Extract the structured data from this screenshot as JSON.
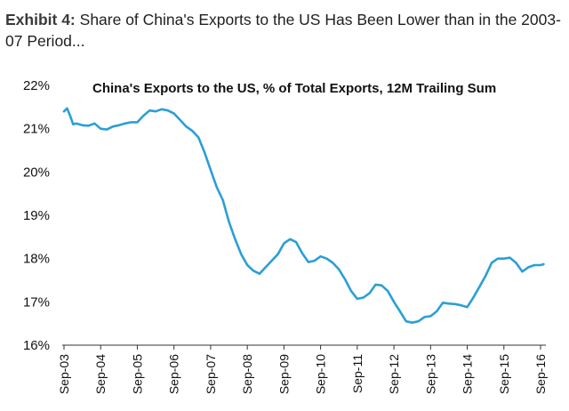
{
  "exhibit": {
    "label": "Exhibit 4:",
    "text": "Share of China's Exports to the US Has Been Lower than in the 2003-07 Period..."
  },
  "colors": {
    "line": "#2b9fd6",
    "axis": "#333333"
  },
  "chart_data": {
    "type": "line",
    "title": "China's Exports to the US, % of Total Exports, 12M Trailing Sum",
    "xlabel": "",
    "ylabel": "",
    "ylim": [
      16,
      22
    ],
    "yticks": [
      16,
      17,
      18,
      19,
      20,
      21,
      22
    ],
    "ytick_labels": [
      "16%",
      "17%",
      "18%",
      "19%",
      "20%",
      "21%",
      "22%"
    ],
    "xticks": [
      "2003-09",
      "2004-09",
      "2005-09",
      "2006-09",
      "2007-09",
      "2008-09",
      "2009-09",
      "2010-09",
      "2011-09",
      "2012-09",
      "2013-09",
      "2014-09",
      "2015-09",
      "2016-09"
    ],
    "xtick_labels": [
      "Sep-03",
      "Sep-04",
      "Sep-05",
      "Sep-06",
      "Sep-07",
      "Sep-08",
      "Sep-09",
      "Sep-10",
      "Sep-11",
      "Sep-12",
      "Sep-13",
      "Sep-14",
      "Sep-15",
      "Sep-16"
    ],
    "grid": false,
    "series": [
      {
        "x": [
          "2003-09",
          "2003-10",
          "2003-11",
          "2003-12",
          "2004-01",
          "2004-03",
          "2004-05",
          "2004-07",
          "2004-09",
          "2004-11",
          "2005-01",
          "2005-03",
          "2005-05",
          "2005-07",
          "2005-09",
          "2005-11",
          "2006-01",
          "2006-03",
          "2006-05",
          "2006-07",
          "2006-09",
          "2006-11",
          "2007-01",
          "2007-03",
          "2007-05",
          "2007-07",
          "2007-09",
          "2007-11",
          "2008-01",
          "2008-03",
          "2008-05",
          "2008-07",
          "2008-09",
          "2008-11",
          "2009-01",
          "2009-03",
          "2009-05",
          "2009-07",
          "2009-09",
          "2009-11",
          "2010-01",
          "2010-03",
          "2010-05",
          "2010-07",
          "2010-09",
          "2010-11",
          "2011-01",
          "2011-03",
          "2011-05",
          "2011-07",
          "2011-09",
          "2011-11",
          "2012-01",
          "2012-03",
          "2012-05",
          "2012-07",
          "2012-09",
          "2012-11",
          "2013-01",
          "2013-03",
          "2013-05",
          "2013-07",
          "2013-09",
          "2013-11",
          "2014-01",
          "2014-03",
          "2014-05",
          "2014-07",
          "2014-09",
          "2014-11",
          "2015-01",
          "2015-03",
          "2015-05",
          "2015-07",
          "2015-09",
          "2015-11",
          "2016-01",
          "2016-03",
          "2016-05",
          "2016-07",
          "2016-09",
          "2016-10"
        ],
        "values": [
          21.4,
          21.47,
          21.3,
          21.1,
          21.12,
          21.08,
          21.07,
          21.12,
          21.0,
          20.98,
          21.05,
          21.08,
          21.12,
          21.15,
          21.15,
          21.3,
          21.42,
          21.4,
          21.45,
          21.42,
          21.35,
          21.2,
          21.05,
          20.95,
          20.8,
          20.45,
          20.05,
          19.65,
          19.35,
          18.85,
          18.45,
          18.1,
          17.85,
          17.72,
          17.65,
          17.8,
          17.95,
          18.1,
          18.35,
          18.45,
          18.38,
          18.12,
          17.92,
          17.95,
          18.05,
          18.0,
          17.9,
          17.75,
          17.52,
          17.25,
          17.07,
          17.1,
          17.2,
          17.4,
          17.38,
          17.25,
          17.0,
          16.78,
          16.55,
          16.52,
          16.55,
          16.65,
          16.67,
          16.78,
          16.98,
          16.96,
          16.95,
          16.92,
          16.88,
          17.1,
          17.35,
          17.6,
          17.9,
          18.0,
          18.0,
          18.02,
          17.9,
          17.7,
          17.8,
          17.85,
          17.85,
          17.87
        ]
      }
    ]
  }
}
